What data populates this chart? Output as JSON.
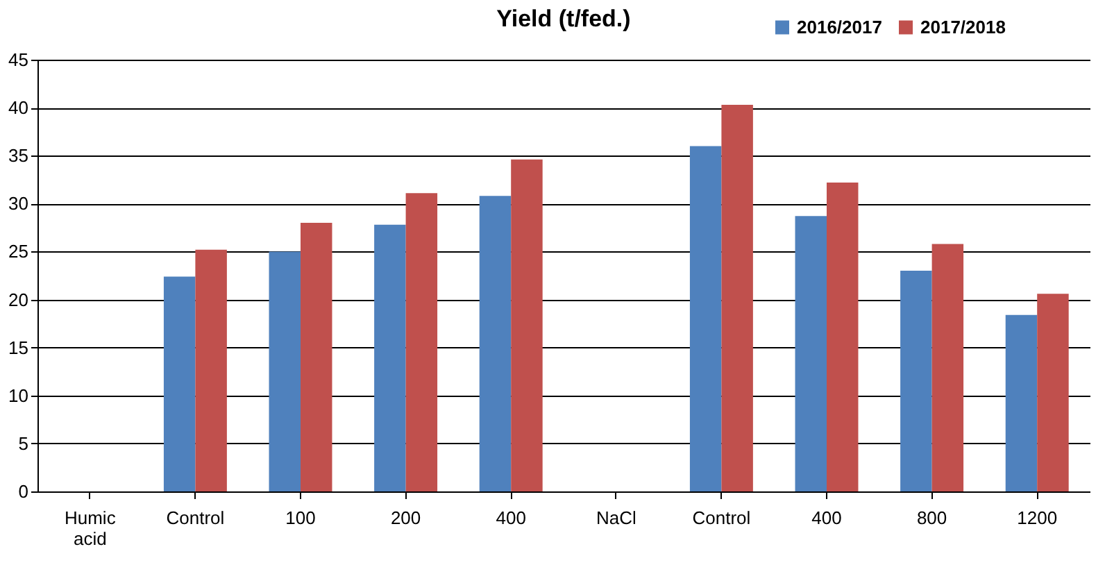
{
  "chart_data": {
    "type": "bar",
    "title": "Yield  (t/fed.)",
    "categories": [
      "Humic acid",
      "Control",
      "100",
      "200",
      "400",
      "NaCl",
      "Control",
      "400",
      "800",
      "1200"
    ],
    "series": [
      {
        "name": "2016/2017",
        "color": "#4f81bd",
        "values": [
          null,
          22.4,
          25.0,
          27.8,
          30.8,
          null,
          36.0,
          28.7,
          23.0,
          18.4
        ]
      },
      {
        "name": "2017/2018",
        "color": "#c0504d",
        "values": [
          null,
          25.2,
          28.0,
          31.1,
          34.6,
          null,
          40.3,
          32.2,
          25.8,
          20.6
        ]
      }
    ],
    "ylim": [
      0,
      45
    ],
    "yticks": [
      0,
      5,
      10,
      15,
      20,
      25,
      30,
      35,
      40,
      45
    ],
    "grid": "y",
    "legend": "top right"
  }
}
